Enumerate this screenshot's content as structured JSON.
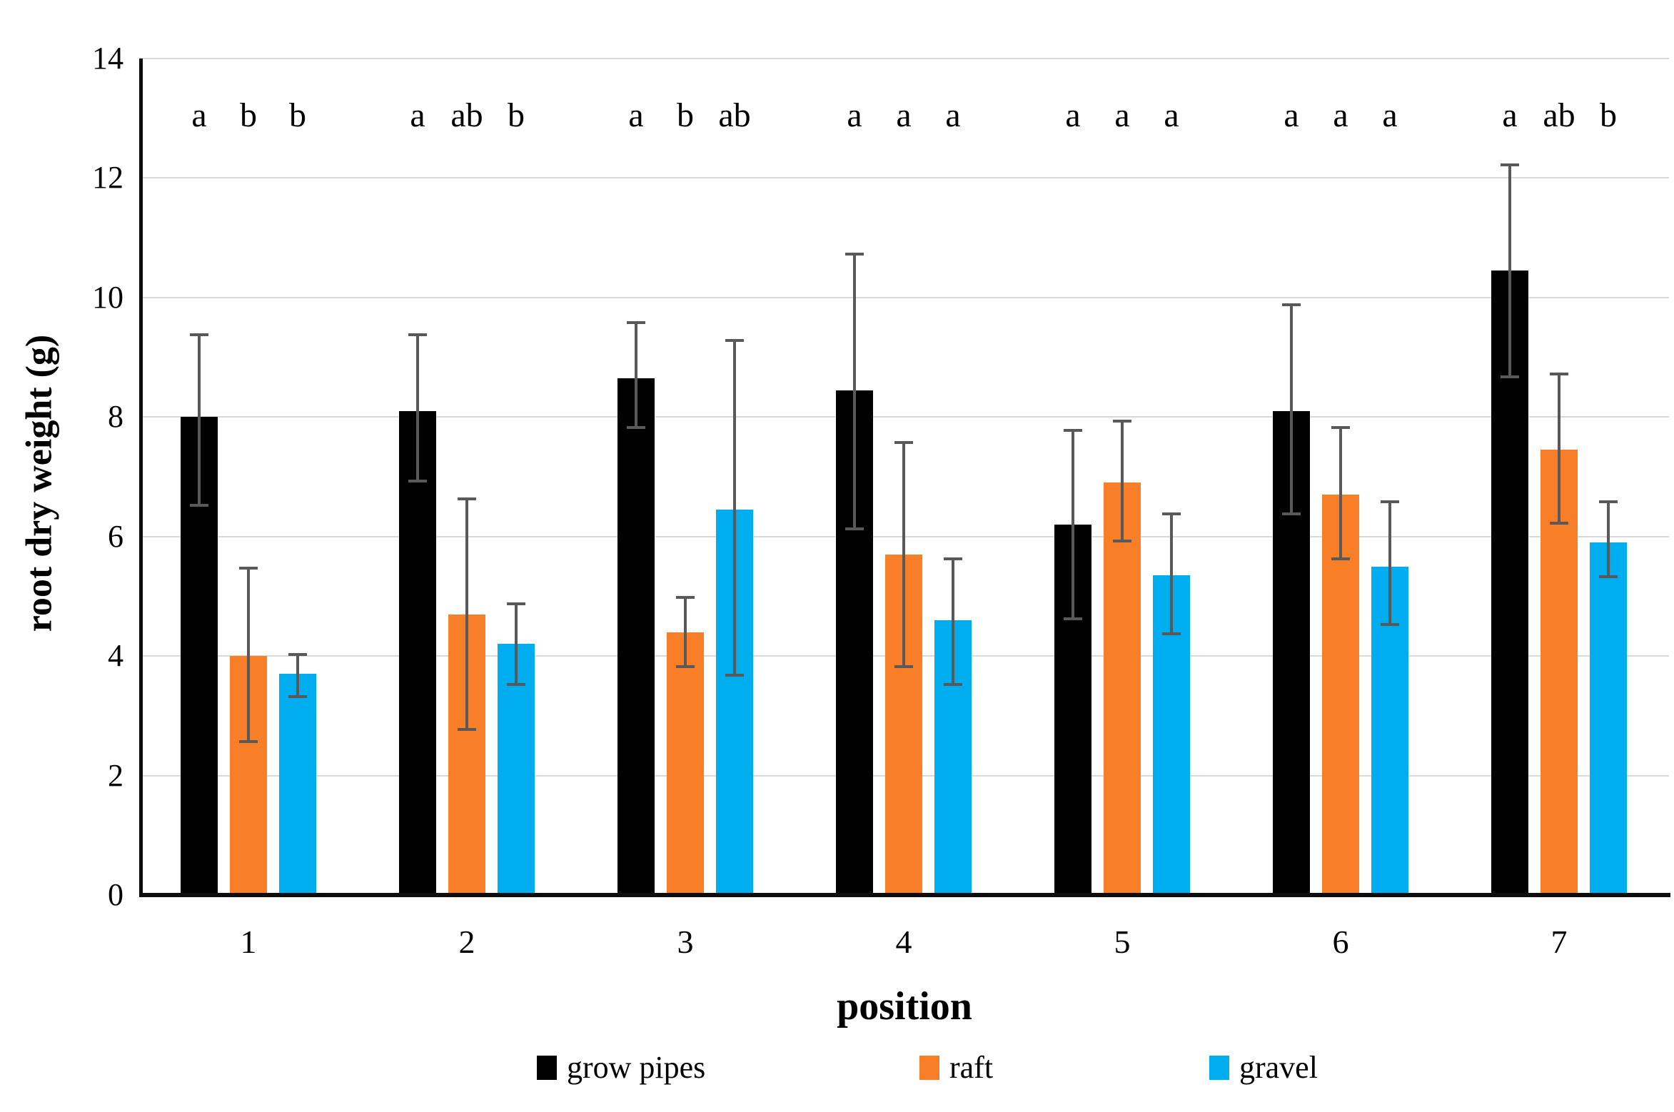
{
  "chart_data": {
    "type": "bar",
    "title": "",
    "xlabel": "position",
    "ylabel": "root dry weight (g)",
    "ylim": [
      0,
      14
    ],
    "yticks": [
      0,
      2,
      4,
      6,
      8,
      10,
      12,
      14
    ],
    "grid": true,
    "legend_position": "bottom",
    "gridline_color": "#d9d9d9",
    "error_bar_color": "#595959",
    "categories": [
      "1",
      "2",
      "3",
      "4",
      "5",
      "6",
      "7"
    ],
    "series": [
      {
        "name": "grow pipes",
        "color": "#000000",
        "values": [
          8.0,
          8.1,
          8.65,
          8.45,
          6.2,
          8.1,
          10.45
        ],
        "error_low": [
          6.5,
          6.9,
          7.8,
          6.1,
          4.6,
          6.35,
          8.65
        ],
        "error_high": [
          9.4,
          9.4,
          9.6,
          10.75,
          7.8,
          9.9,
          12.25
        ]
      },
      {
        "name": "raft",
        "color": "#f87e27",
        "values": [
          4.0,
          4.7,
          4.4,
          5.7,
          6.9,
          6.7,
          7.45
        ],
        "error_low": [
          2.55,
          2.75,
          3.8,
          3.8,
          5.9,
          5.6,
          6.2
        ],
        "error_high": [
          5.5,
          6.65,
          5.0,
          7.6,
          7.95,
          7.85,
          8.75
        ]
      },
      {
        "name": "gravel",
        "color": "#00aeef",
        "values": [
          3.7,
          4.2,
          6.45,
          4.6,
          5.35,
          5.5,
          5.9
        ],
        "error_low": [
          3.3,
          3.5,
          3.65,
          3.5,
          4.35,
          4.5,
          5.3
        ],
        "error_high": [
          4.05,
          4.9,
          9.3,
          5.65,
          6.4,
          6.6,
          6.6
        ]
      }
    ],
    "significance_letters": [
      [
        "a",
        "b",
        "b"
      ],
      [
        "a",
        "ab",
        "b"
      ],
      [
        "a",
        "b",
        "ab"
      ],
      [
        "a",
        "a",
        "a"
      ],
      [
        "a",
        "a",
        "a"
      ],
      [
        "a",
        "a",
        "a"
      ],
      [
        "a",
        "ab",
        "b"
      ]
    ]
  }
}
